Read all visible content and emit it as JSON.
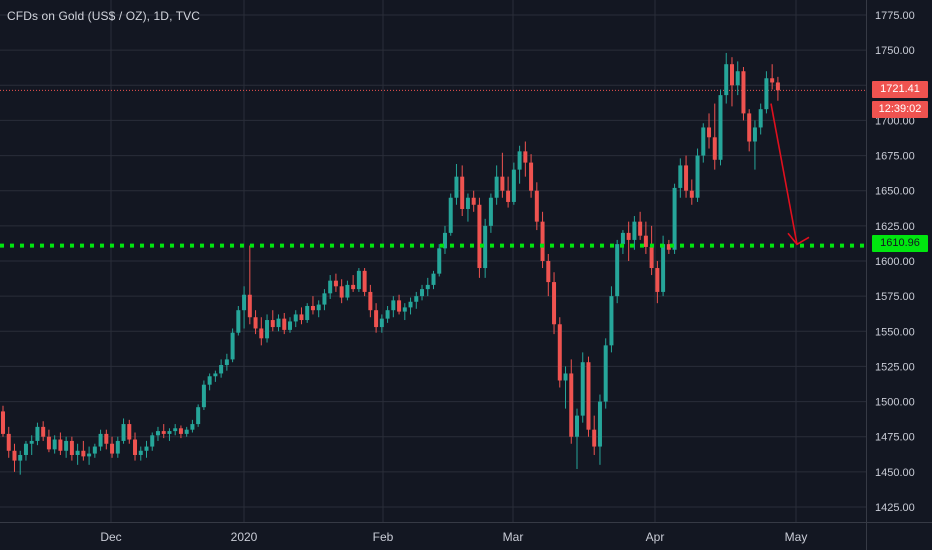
{
  "legend": {
    "title": "CFDs on Gold (US$ / OZ), 1D, TVC"
  },
  "price_tags": {
    "last_price": "1721.41",
    "countdown": "12:39:02",
    "level": "1610.96"
  },
  "colors": {
    "up": "#26a69a",
    "down": "#ef5350",
    "level_line": "#00e60f",
    "arrow": "#e0101e",
    "grid": "#2a2e39",
    "background": "#131722"
  },
  "chart_data": {
    "type": "candlestick",
    "title": "CFDs on Gold (US$ / OZ), 1D, TVC",
    "y_ticks": [
      1425,
      1450,
      1475,
      1500,
      1525,
      1550,
      1575,
      1600,
      1625,
      1650,
      1675,
      1700,
      1725,
      1750,
      1775
    ],
    "y_tick_labels": [
      "1425.00",
      "1450.00",
      "1475.00",
      "1500.00",
      "1525.00",
      "1550.00",
      "1575.00",
      "1600.00",
      "1625.00",
      "1650.00",
      "1675.00",
      "1700.00",
      "1725.00",
      "1750.00",
      "1775.00"
    ],
    "ylim": [
      1417,
      1782
    ],
    "x_ticks": [
      "Dec",
      "2020",
      "Feb",
      "Mar",
      "Apr",
      "May"
    ],
    "grid": true,
    "horizontal_level": 1610.96,
    "last_price": 1721.41,
    "candles": [
      [
        1493,
        1497,
        1475,
        1477
      ],
      [
        1477,
        1482,
        1460,
        1465
      ],
      [
        1465,
        1470,
        1450,
        1458
      ],
      [
        1458,
        1465,
        1448,
        1462
      ],
      [
        1462,
        1472,
        1458,
        1470
      ],
      [
        1470,
        1476,
        1462,
        1472
      ],
      [
        1472,
        1485,
        1469,
        1482
      ],
      [
        1482,
        1486,
        1472,
        1475
      ],
      [
        1475,
        1480,
        1464,
        1466
      ],
      [
        1466,
        1476,
        1463,
        1473
      ],
      [
        1473,
        1478,
        1462,
        1465
      ],
      [
        1465,
        1475,
        1460,
        1472
      ],
      [
        1472,
        1475,
        1458,
        1462
      ],
      [
        1462,
        1470,
        1455,
        1465
      ],
      [
        1465,
        1472,
        1458,
        1461
      ],
      [
        1461,
        1468,
        1455,
        1463
      ],
      [
        1463,
        1470,
        1460,
        1468
      ],
      [
        1468,
        1480,
        1465,
        1477
      ],
      [
        1477,
        1480,
        1466,
        1470
      ],
      [
        1470,
        1475,
        1460,
        1463
      ],
      [
        1463,
        1475,
        1460,
        1472
      ],
      [
        1472,
        1488,
        1470,
        1484
      ],
      [
        1484,
        1487,
        1470,
        1473
      ],
      [
        1473,
        1478,
        1458,
        1462
      ],
      [
        1462,
        1468,
        1458,
        1465
      ],
      [
        1465,
        1472,
        1460,
        1468
      ],
      [
        1468,
        1478,
        1465,
        1476
      ],
      [
        1476,
        1482,
        1472,
        1479
      ],
      [
        1479,
        1484,
        1474,
        1477
      ],
      [
        1477,
        1481,
        1472,
        1479
      ],
      [
        1479,
        1484,
        1476,
        1481
      ],
      [
        1481,
        1483,
        1474,
        1477
      ],
      [
        1477,
        1482,
        1475,
        1480
      ],
      [
        1480,
        1487,
        1478,
        1484
      ],
      [
        1484,
        1498,
        1482,
        1496
      ],
      [
        1496,
        1515,
        1494,
        1512
      ],
      [
        1512,
        1520,
        1508,
        1518
      ],
      [
        1518,
        1522,
        1514,
        1520
      ],
      [
        1520,
        1530,
        1517,
        1526
      ],
      [
        1526,
        1534,
        1522,
        1530
      ],
      [
        1530,
        1552,
        1528,
        1549
      ],
      [
        1549,
        1568,
        1547,
        1565
      ],
      [
        1565,
        1582,
        1552,
        1576
      ],
      [
        1576,
        1611,
        1555,
        1560
      ],
      [
        1560,
        1565,
        1548,
        1552
      ],
      [
        1552,
        1560,
        1540,
        1545
      ],
      [
        1545,
        1562,
        1542,
        1558
      ],
      [
        1558,
        1565,
        1550,
        1553
      ],
      [
        1553,
        1562,
        1550,
        1559
      ],
      [
        1559,
        1563,
        1548,
        1551
      ],
      [
        1551,
        1560,
        1549,
        1557
      ],
      [
        1557,
        1565,
        1553,
        1562
      ],
      [
        1562,
        1567,
        1555,
        1558
      ],
      [
        1558,
        1570,
        1556,
        1568
      ],
      [
        1568,
        1575,
        1562,
        1565
      ],
      [
        1565,
        1572,
        1560,
        1569
      ],
      [
        1569,
        1580,
        1565,
        1577
      ],
      [
        1577,
        1590,
        1573,
        1586
      ],
      [
        1586,
        1591,
        1578,
        1582
      ],
      [
        1582,
        1587,
        1570,
        1574
      ],
      [
        1574,
        1586,
        1572,
        1583
      ],
      [
        1583,
        1590,
        1578,
        1580
      ],
      [
        1580,
        1595,
        1578,
        1593
      ],
      [
        1593,
        1595,
        1575,
        1578
      ],
      [
        1578,
        1583,
        1560,
        1565
      ],
      [
        1565,
        1570,
        1549,
        1553
      ],
      [
        1553,
        1562,
        1549,
        1559
      ],
      [
        1559,
        1568,
        1556,
        1565
      ],
      [
        1565,
        1575,
        1560,
        1572
      ],
      [
        1572,
        1576,
        1562,
        1564
      ],
      [
        1564,
        1570,
        1558,
        1567
      ],
      [
        1567,
        1574,
        1562,
        1571
      ],
      [
        1571,
        1578,
        1566,
        1575
      ],
      [
        1575,
        1583,
        1572,
        1580
      ],
      [
        1580,
        1588,
        1575,
        1583
      ],
      [
        1583,
        1593,
        1580,
        1591
      ],
      [
        1591,
        1612,
        1589,
        1609
      ],
      [
        1609,
        1625,
        1605,
        1620
      ],
      [
        1620,
        1648,
        1618,
        1645
      ],
      [
        1645,
        1669,
        1640,
        1660
      ],
      [
        1660,
        1668,
        1632,
        1637
      ],
      [
        1637,
        1648,
        1628,
        1645
      ],
      [
        1645,
        1650,
        1635,
        1640
      ],
      [
        1640,
        1645,
        1588,
        1595
      ],
      [
        1595,
        1630,
        1588,
        1625
      ],
      [
        1625,
        1648,
        1620,
        1645
      ],
      [
        1645,
        1668,
        1640,
        1660
      ],
      [
        1660,
        1677,
        1645,
        1650
      ],
      [
        1650,
        1660,
        1638,
        1642
      ],
      [
        1642,
        1670,
        1640,
        1665
      ],
      [
        1665,
        1682,
        1655,
        1678
      ],
      [
        1678,
        1685,
        1660,
        1670
      ],
      [
        1670,
        1676,
        1645,
        1650
      ],
      [
        1650,
        1656,
        1622,
        1628
      ],
      [
        1628,
        1635,
        1595,
        1600
      ],
      [
        1600,
        1605,
        1575,
        1585
      ],
      [
        1585,
        1592,
        1548,
        1555
      ],
      [
        1555,
        1560,
        1510,
        1515
      ],
      [
        1515,
        1525,
        1495,
        1520
      ],
      [
        1520,
        1530,
        1470,
        1475
      ],
      [
        1475,
        1495,
        1452,
        1490
      ],
      [
        1490,
        1535,
        1485,
        1528
      ],
      [
        1528,
        1532,
        1475,
        1480
      ],
      [
        1480,
        1490,
        1462,
        1468
      ],
      [
        1468,
        1505,
        1455,
        1500
      ],
      [
        1500,
        1545,
        1495,
        1540
      ],
      [
        1540,
        1582,
        1535,
        1575
      ],
      [
        1575,
        1615,
        1570,
        1612
      ],
      [
        1612,
        1622,
        1605,
        1620
      ],
      [
        1620,
        1628,
        1600,
        1615
      ],
      [
        1615,
        1632,
        1608,
        1628
      ],
      [
        1628,
        1635,
        1615,
        1618
      ],
      [
        1618,
        1628,
        1605,
        1610
      ],
      [
        1610,
        1625,
        1590,
        1595
      ],
      [
        1595,
        1600,
        1570,
        1578
      ],
      [
        1578,
        1618,
        1575,
        1612
      ],
      [
        1612,
        1615,
        1605,
        1608
      ],
      [
        1608,
        1655,
        1605,
        1652
      ],
      [
        1652,
        1673,
        1645,
        1668
      ],
      [
        1668,
        1675,
        1645,
        1650
      ],
      [
        1650,
        1658,
        1640,
        1645
      ],
      [
        1645,
        1680,
        1642,
        1675
      ],
      [
        1675,
        1698,
        1670,
        1695
      ],
      [
        1695,
        1705,
        1680,
        1688
      ],
      [
        1688,
        1712,
        1665,
        1672
      ],
      [
        1672,
        1722,
        1668,
        1718
      ],
      [
        1718,
        1748,
        1712,
        1740
      ],
      [
        1740,
        1745,
        1710,
        1725
      ],
      [
        1725,
        1742,
        1718,
        1735
      ],
      [
        1735,
        1738,
        1700,
        1705
      ],
      [
        1705,
        1708,
        1678,
        1685
      ],
      [
        1685,
        1700,
        1665,
        1695
      ],
      [
        1695,
        1712,
        1690,
        1708
      ],
      [
        1708,
        1735,
        1705,
        1730
      ],
      [
        1730,
        1740,
        1722,
        1727
      ],
      [
        1727,
        1731,
        1714,
        1721.41
      ]
    ],
    "annotation_arrow": {
      "from_price": 1712,
      "to_price": 1619,
      "color": "#e0101e"
    }
  }
}
